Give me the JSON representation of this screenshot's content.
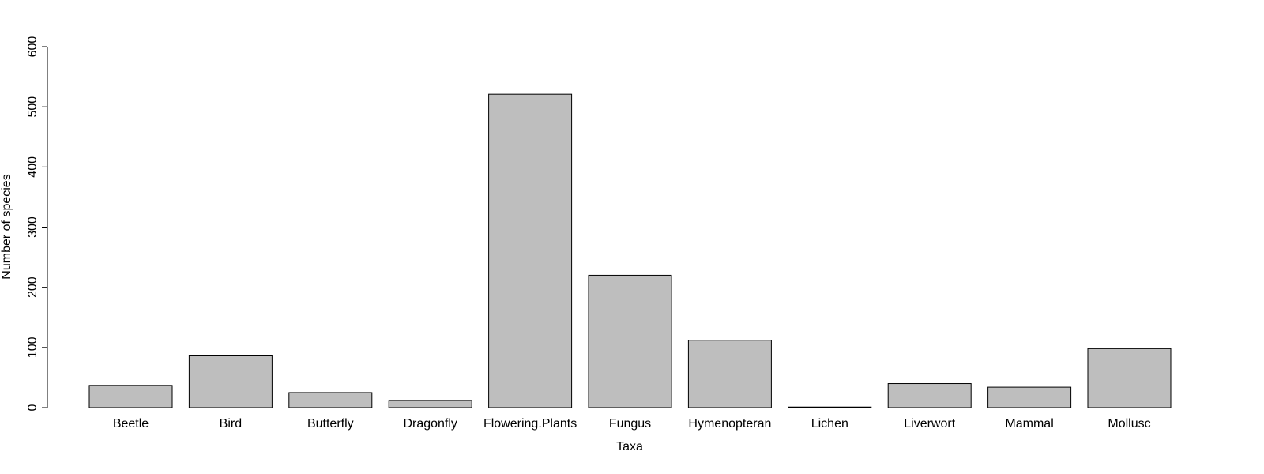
{
  "chart_data": {
    "type": "bar",
    "categories": [
      "Beetle",
      "Bird",
      "Butterfly",
      "Dragonfly",
      "Flowering.Plants",
      "Fungus",
      "Hymenopteran",
      "Lichen",
      "Liverwort",
      "Mammal",
      "Mollusc"
    ],
    "values": [
      37,
      86,
      25,
      12,
      521,
      220,
      112,
      1,
      40,
      34,
      98
    ],
    "xlabel": "Taxa",
    "ylabel": "Number of species",
    "ylim": [
      0,
      600
    ],
    "yticks": [
      "0",
      "100",
      "200",
      "300",
      "400",
      "500",
      "600"
    ],
    "grid": false,
    "bar_color": "#bebebe",
    "bar_border_color": "#000000"
  }
}
